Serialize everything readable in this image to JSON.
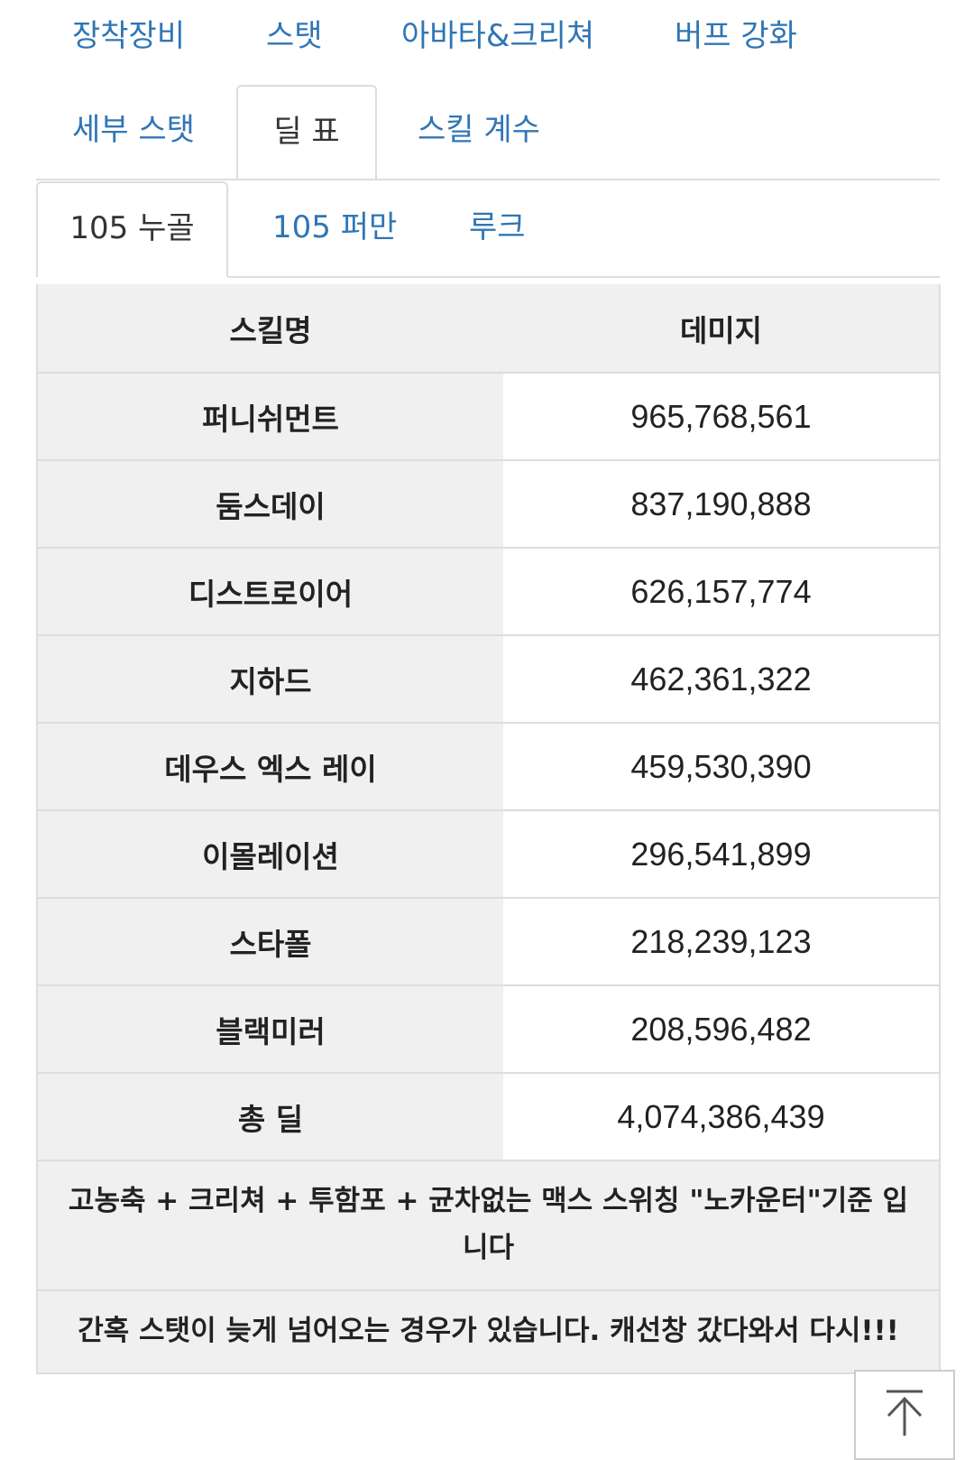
{
  "tabs_row1": [
    "장착장비",
    "스탯",
    "아바타&크리쳐",
    "버프 강화"
  ],
  "tabs_row2": [
    "세부 스탯",
    "딜 표",
    "스킬 계수"
  ],
  "active_tab": "딜 표",
  "subtabs": [
    "105 누골",
    "105 퍼만",
    "루크"
  ],
  "active_subtab": "105 누골",
  "table": {
    "headers": [
      "스킬명",
      "데미지"
    ],
    "rows": [
      {
        "skill": "퍼니쉬먼트",
        "damage": "965,768,561"
      },
      {
        "skill": "둠스데이",
        "damage": "837,190,888"
      },
      {
        "skill": "디스트로이어",
        "damage": "626,157,774"
      },
      {
        "skill": "지하드",
        "damage": "462,361,322"
      },
      {
        "skill": "데우스 엑스 레이",
        "damage": "459,530,390"
      },
      {
        "skill": "이몰레이션",
        "damage": "296,541,899"
      },
      {
        "skill": "스타폴",
        "damage": "218,239,123"
      },
      {
        "skill": "블랙미러",
        "damage": "208,596,482"
      },
      {
        "skill": "총 딜",
        "damage": "4,074,386,439"
      }
    ]
  },
  "notes": [
    "고농축 + 크리쳐 + 투함포 + 균차없는 맥스 스위칭 \"노카운터\"기준 입니다",
    "간혹 스탯이 늦게 넘어오는 경우가 있습니다. 캐선창 갔다와서 다시!!!"
  ],
  "scroll_top_icon": "arrow-up-to-top-icon",
  "colors": {
    "link": "#2f76b5",
    "header_bg": "#f0f0f0",
    "border": "#dddddd"
  }
}
